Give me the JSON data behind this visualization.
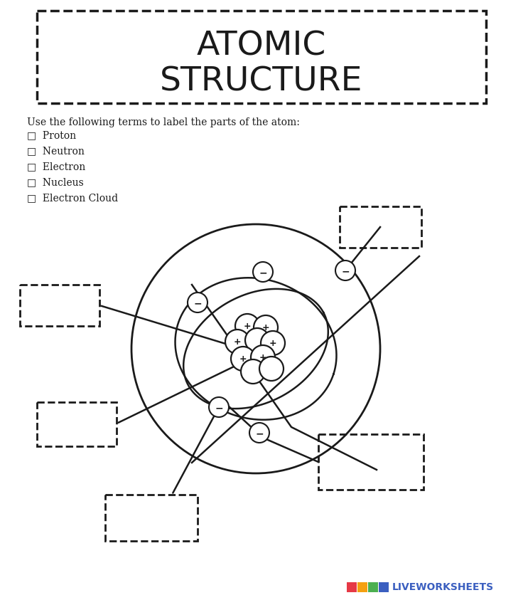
{
  "title_line1": "ATOMIC",
  "title_line2": "STRUCTURE",
  "bg_color": "#ffffff",
  "line_color": "#1a1a1a",
  "instruction_text": "Use the following terms to label the parts of the atom:",
  "terms": [
    "□  Proton",
    "□  Neutron",
    "□  Electron",
    "□  Nucleus",
    "□  Electron Cloud"
  ],
  "logo_colors": [
    "#e63946",
    "#f4a011",
    "#4caf50",
    "#3b5fc0"
  ],
  "logo_text_color": "#3b5fc0"
}
